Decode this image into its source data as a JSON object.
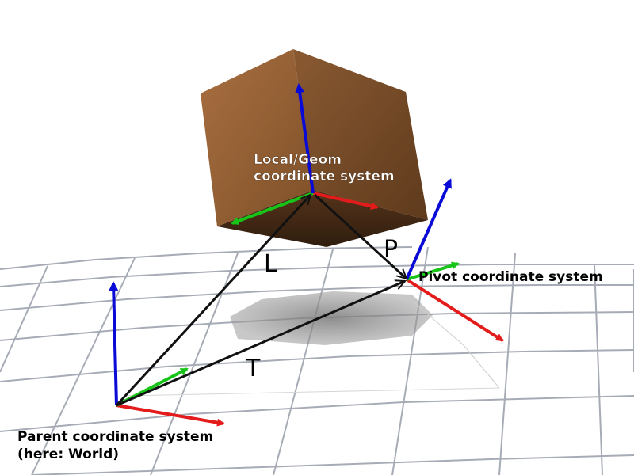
{
  "labels": {
    "local_line1": "Local/Geom",
    "local_line2": "coordinate system",
    "pivot": "Pivot coordinate system",
    "parent_line1": "Parent coordinate system",
    "parent_line2": "(here: World)",
    "vector_L": "L",
    "vector_P": "P",
    "vector_T": "T"
  },
  "colors": {
    "x_axis": "#e31b1b",
    "y_axis": "#18c418",
    "z_axis": "#0a0ad6",
    "cube_front": "#8b5a32",
    "cube_side": "#73461f",
    "cube_bottom": "#3e2616",
    "grid": "#9da3ad",
    "vector": "#111111"
  }
}
